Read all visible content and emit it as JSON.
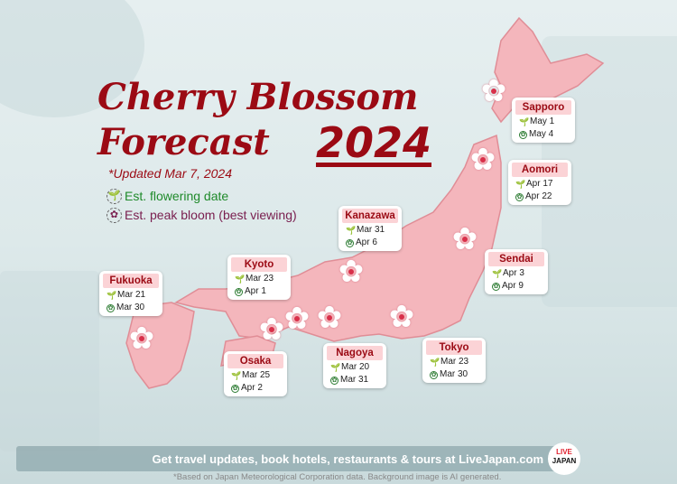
{
  "title": {
    "line1": "Cherry Blossom",
    "line2": "Forecast",
    "year": "2024",
    "updated": "*Updated Mar 7, 2024"
  },
  "legend": [
    {
      "label": "Est. flowering date",
      "icon": "sprout-icon"
    },
    {
      "label": "Est. peak bloom (best viewing)",
      "icon": "blossom-icon"
    }
  ],
  "colors": {
    "title": "#9b0a14",
    "map": "#f4b6bc",
    "flowering": "#1f8a2a",
    "peak": "#7a2050"
  },
  "cities": [
    {
      "name": "Sapporo",
      "flowering": "May 1",
      "peak": "May 4"
    },
    {
      "name": "Aomori",
      "flowering": "Apr 17",
      "peak": "Apr 22"
    },
    {
      "name": "Kanazawa",
      "flowering": "Mar 31",
      "peak": "Apr 6"
    },
    {
      "name": "Sendai",
      "flowering": "Apr 3",
      "peak": "Apr 9"
    },
    {
      "name": "Kyoto",
      "flowering": "Mar 23",
      "peak": "Apr 1"
    },
    {
      "name": "Fukuoka",
      "flowering": "Mar 21",
      "peak": "Mar 30"
    },
    {
      "name": "Osaka",
      "flowering": "Mar 25",
      "peak": "Apr 2"
    },
    {
      "name": "Nagoya",
      "flowering": "Mar 20",
      "peak": "Mar 31"
    },
    {
      "name": "Tokyo",
      "flowering": "Mar 23",
      "peak": "Mar 30"
    }
  ],
  "footer": {
    "banner": "Get travel updates, book hotels, restaurants & tours at LiveJapan.com",
    "logo_top": "LIVE",
    "logo_bottom": "JAPAN",
    "note": "*Based on Japan Meteorological Corporation data. Background image is AI generated."
  }
}
